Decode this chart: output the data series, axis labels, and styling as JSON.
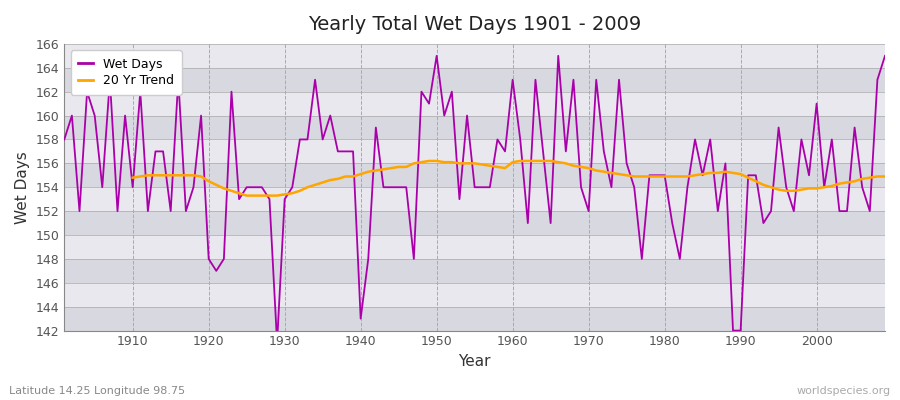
{
  "title": "Yearly Total Wet Days 1901 - 2009",
  "xlabel": "Year",
  "ylabel": "Wet Days",
  "subtitle": "Latitude 14.25 Longitude 98.75",
  "watermark": "worldspecies.org",
  "ylim": [
    142,
    166
  ],
  "yticks": [
    142,
    144,
    146,
    148,
    150,
    152,
    154,
    156,
    158,
    160,
    162,
    164,
    166
  ],
  "xlim": [
    1901,
    2009
  ],
  "xticks": [
    1910,
    1920,
    1930,
    1940,
    1950,
    1960,
    1970,
    1980,
    1990,
    2000
  ],
  "wet_days_color": "#aa00aa",
  "trend_color": "#FFA500",
  "fig_bg_color": "#ffffff",
  "plot_bg_light": "#e8e8ee",
  "plot_bg_dark": "#d8d8e0",
  "legend_labels": [
    "Wet Days",
    "20 Yr Trend"
  ],
  "years": [
    1901,
    1902,
    1903,
    1904,
    1905,
    1906,
    1907,
    1908,
    1909,
    1910,
    1911,
    1912,
    1913,
    1914,
    1915,
    1916,
    1917,
    1918,
    1919,
    1920,
    1921,
    1922,
    1923,
    1924,
    1925,
    1926,
    1927,
    1928,
    1929,
    1930,
    1931,
    1932,
    1933,
    1934,
    1935,
    1936,
    1937,
    1938,
    1939,
    1940,
    1941,
    1942,
    1943,
    1944,
    1945,
    1946,
    1947,
    1948,
    1949,
    1950,
    1951,
    1952,
    1953,
    1954,
    1955,
    1956,
    1957,
    1958,
    1959,
    1960,
    1961,
    1962,
    1963,
    1964,
    1965,
    1966,
    1967,
    1968,
    1969,
    1970,
    1971,
    1972,
    1973,
    1974,
    1975,
    1976,
    1977,
    1978,
    1979,
    1980,
    1981,
    1982,
    1983,
    1984,
    1985,
    1986,
    1987,
    1988,
    1989,
    1990,
    1991,
    1992,
    1993,
    1994,
    1995,
    1996,
    1997,
    1998,
    1999,
    2000,
    2001,
    2002,
    2003,
    2004,
    2005,
    2006,
    2007,
    2008,
    2009
  ],
  "wet_days": [
    158,
    160,
    152,
    162,
    160,
    154,
    163,
    152,
    160,
    154,
    162,
    152,
    157,
    157,
    152,
    163,
    152,
    154,
    160,
    148,
    147,
    148,
    162,
    153,
    154,
    154,
    154,
    153,
    141,
    153,
    154,
    158,
    158,
    163,
    158,
    160,
    157,
    157,
    157,
    143,
    148,
    159,
    154,
    154,
    154,
    154,
    148,
    162,
    161,
    165,
    160,
    162,
    153,
    160,
    154,
    154,
    154,
    158,
    157,
    163,
    158,
    151,
    163,
    157,
    151,
    165,
    157,
    163,
    154,
    152,
    163,
    157,
    154,
    163,
    156,
    154,
    148,
    155,
    155,
    155,
    151,
    148,
    154,
    158,
    155,
    158,
    152,
    156,
    142,
    142,
    155,
    155,
    151,
    152,
    159,
    154,
    152,
    158,
    155,
    161,
    154,
    158,
    152,
    152,
    159,
    154,
    152,
    163,
    165
  ],
  "trend_years": [
    1910,
    1911,
    1912,
    1913,
    1914,
    1915,
    1916,
    1917,
    1918,
    1919,
    1920,
    1921,
    1922,
    1923,
    1924,
    1925,
    1926,
    1927,
    1928,
    1929,
    1930,
    1931,
    1932,
    1933,
    1934,
    1935,
    1936,
    1937,
    1938,
    1939,
    1940,
    1941,
    1942,
    1943,
    1944,
    1945,
    1946,
    1947,
    1948,
    1949,
    1950,
    1951,
    1952,
    1953,
    1954,
    1955,
    1956,
    1957,
    1958,
    1959,
    1960,
    1961,
    1962,
    1963,
    1964,
    1965,
    1966,
    1967,
    1968,
    1969,
    1970,
    1971,
    1972,
    1973,
    1974,
    1975,
    1976,
    1977,
    1978,
    1979,
    1980,
    1981,
    1982,
    1983,
    1984,
    1985,
    1986,
    1987,
    1988,
    1989,
    1990,
    1991,
    1992,
    1993,
    1994,
    1995,
    1996,
    1997,
    1998,
    1999,
    2000,
    2001,
    2002,
    2003,
    2004,
    2005,
    2006,
    2007,
    2008,
    2009
  ],
  "trend": [
    154.8,
    154.9,
    155.0,
    155.0,
    155.0,
    155.0,
    155.0,
    155.0,
    155.0,
    154.9,
    154.5,
    154.2,
    153.9,
    153.7,
    153.5,
    153.3,
    153.3,
    153.3,
    153.3,
    153.3,
    153.4,
    153.5,
    153.7,
    154.0,
    154.2,
    154.4,
    154.6,
    154.7,
    154.9,
    154.9,
    155.1,
    155.3,
    155.4,
    155.5,
    155.6,
    155.7,
    155.7,
    156.0,
    156.1,
    156.2,
    156.2,
    156.1,
    156.1,
    156.0,
    156.0,
    156.0,
    155.9,
    155.8,
    155.7,
    155.6,
    156.1,
    156.2,
    156.2,
    156.2,
    156.2,
    156.2,
    156.1,
    156.0,
    155.8,
    155.7,
    155.6,
    155.4,
    155.3,
    155.2,
    155.1,
    155.0,
    154.9,
    154.9,
    154.9,
    154.9,
    154.9,
    154.9,
    154.9,
    154.9,
    155.0,
    155.1,
    155.2,
    155.2,
    155.3,
    155.2,
    155.1,
    154.8,
    154.5,
    154.2,
    154.0,
    153.8,
    153.7,
    153.7,
    153.8,
    153.9,
    153.9,
    154.0,
    154.1,
    154.3,
    154.4,
    154.5,
    154.7,
    154.8,
    154.9,
    154.9
  ]
}
